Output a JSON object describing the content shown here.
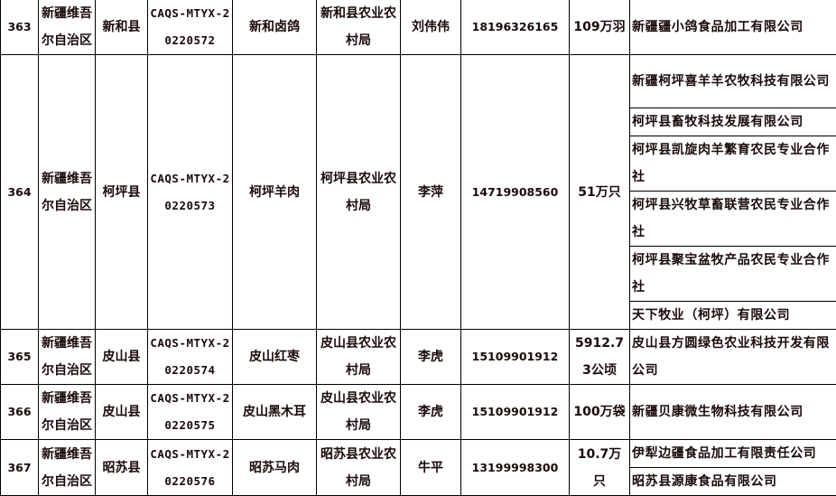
{
  "records": [
    {
      "no": "363",
      "region": "新疆维吾尔自治区",
      "county": "新和县",
      "code": "CAQS-MTYX-20220572",
      "product": "新和卤鸽",
      "agency": "新和县农业农村局",
      "contact": "刘伟伟",
      "phone": "18196326165",
      "scale": "109万羽",
      "companies": [
        "新疆疆小鸽食品加工有限公司"
      ]
    },
    {
      "no": "364",
      "region": "新疆维吾尔自治区",
      "county": "柯坪县",
      "code": "CAQS-MTYX-20220573",
      "product": "柯坪羊肉",
      "agency": "柯坪县农业农村局",
      "contact": "李萍",
      "phone": "14719908560",
      "scale": "51万只",
      "companies": [
        "新疆柯坪喜羊羊农牧科技有限公司",
        "柯坪县畜牧科技发展有限公司",
        "柯坪县凯旋肉羊繁育农民专业合作社",
        "柯坪县兴牧草畜联营农民专业合作社",
        "柯坪县聚宝盆牧产品农民专业合作社",
        "天下牧业（柯坪）有限公司"
      ]
    },
    {
      "no": "365",
      "region": "新疆维吾尔自治区",
      "county": "皮山县",
      "code": "CAQS-MTYX-20220574",
      "product": "皮山红枣",
      "agency": "皮山县农业农村局",
      "contact": "李虎",
      "phone": "15109901912",
      "scale": "5912.73公顷",
      "companies": [
        "皮山县方圆绿色农业科技开发有限公司"
      ]
    },
    {
      "no": "366",
      "region": "新疆维吾尔自治区",
      "county": "皮山县",
      "code": "CAQS-MTYX-20220575",
      "product": "皮山黑木耳",
      "agency": "皮山县农业农村局",
      "contact": "李虎",
      "phone": "15109901912",
      "scale": "100万袋",
      "companies": [
        "新疆贝康微生物科技有限公司"
      ]
    },
    {
      "no": "367",
      "region": "新疆维吾尔自治区",
      "county": "昭苏县",
      "code": "CAQS-MTYX-20220576",
      "product": "昭苏马肉",
      "agency": "昭苏县农业农村局",
      "contact": "牛平",
      "phone": "13199998300",
      "scale": "10.7万只",
      "companies": [
        "伊犁边疆食品加工有限责任公司",
        "昭苏县源康食品有限公司"
      ]
    }
  ]
}
